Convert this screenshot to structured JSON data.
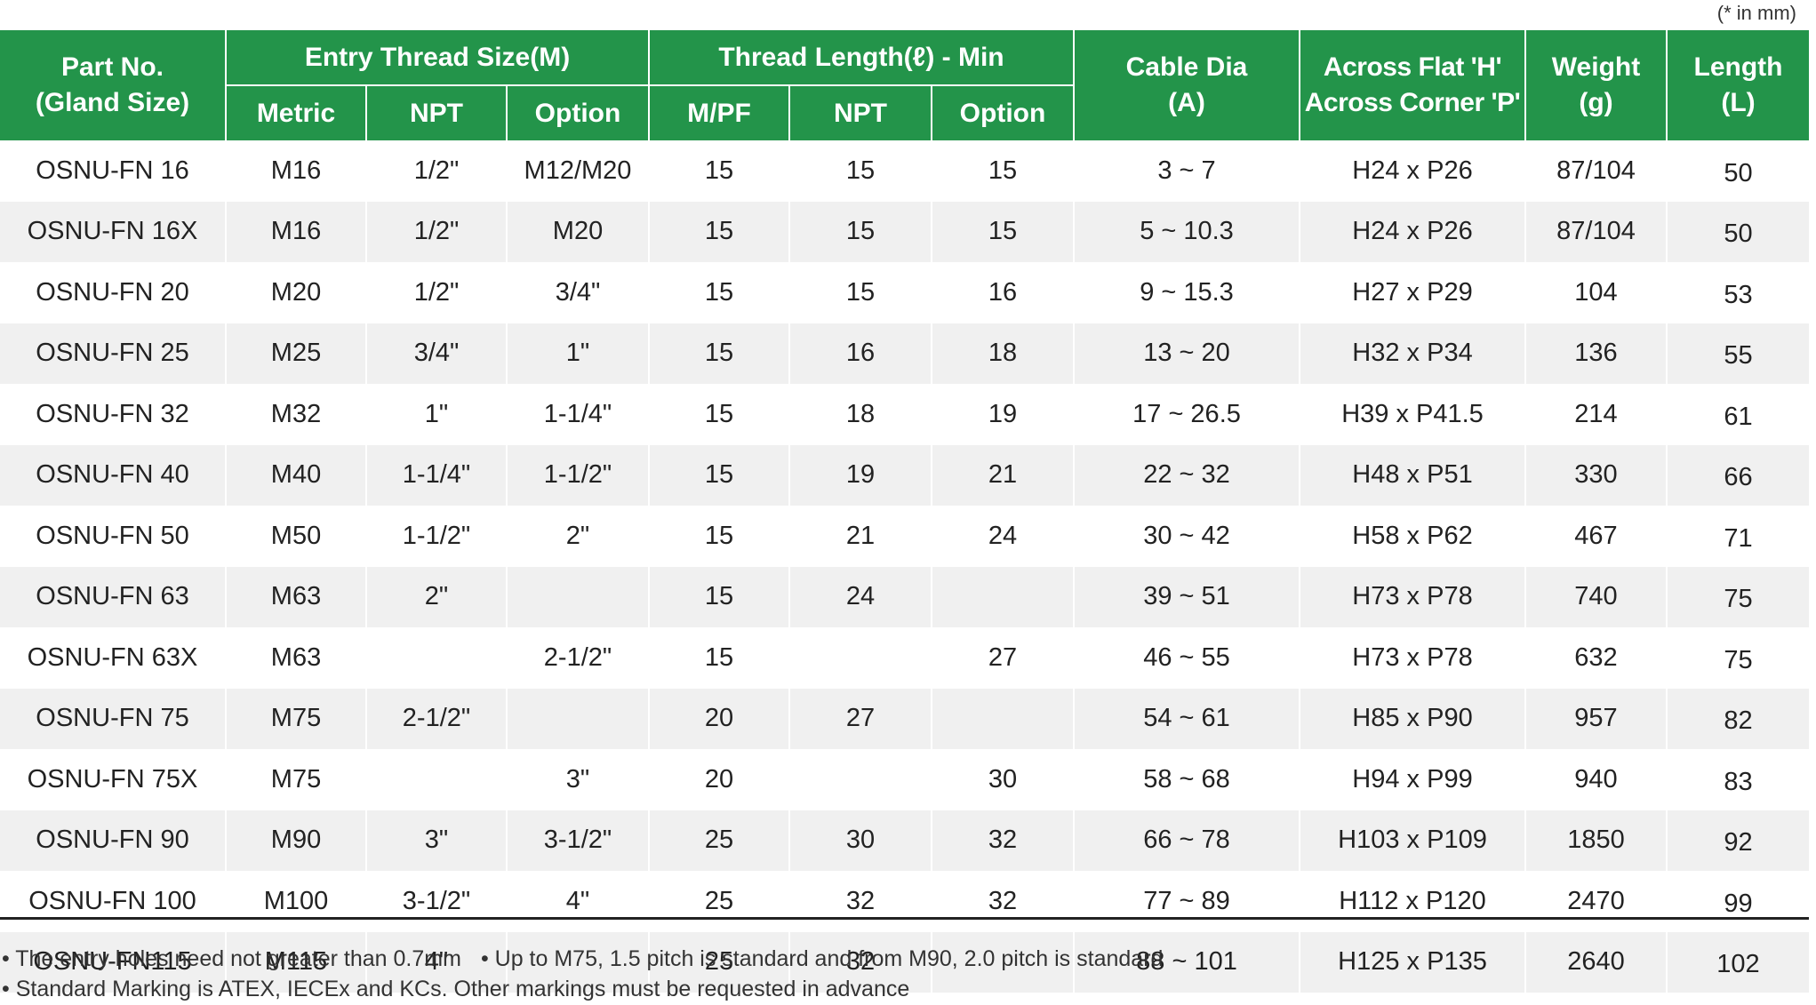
{
  "unit_note": "(* in mm)",
  "header": {
    "part_no": "Part No.",
    "gland_size": "(Gland Size)",
    "entry_thread": "Entry Thread Size(M)",
    "thread_length": "Thread Length(ℓ) - Min",
    "cable_dia": "Cable Dia",
    "cable_dia_unit": "(A)",
    "across_flat": "Across Flat 'H'",
    "across_corner": "Across Corner 'P'",
    "weight": "Weight",
    "weight_unit": "(g)",
    "length": "Length",
    "length_unit": "(L)",
    "sub": {
      "metric": "Metric",
      "npt": "NPT",
      "option": "Option",
      "mpf": "M/PF",
      "tl_npt": "NPT",
      "tl_option": "Option"
    }
  },
  "rows": [
    [
      "OSNU-FN 16",
      "M16",
      "1/2\"",
      "M12/M20",
      "15",
      "15",
      "15",
      "3 ~ 7",
      "H24 x P26",
      "87/104",
      "50"
    ],
    [
      "OSNU-FN 16X",
      "M16",
      "1/2\"",
      "M20",
      "15",
      "15",
      "15",
      "5 ~ 10.3",
      "H24 x P26",
      "87/104",
      "50"
    ],
    [
      "OSNU-FN 20",
      "M20",
      "1/2\"",
      "3/4\"",
      "15",
      "15",
      "16",
      "9 ~ 15.3",
      "H27 x P29",
      "104",
      "53"
    ],
    [
      "OSNU-FN 25",
      "M25",
      "3/4\"",
      "1\"",
      "15",
      "16",
      "18",
      "13 ~ 20",
      "H32 x P34",
      "136",
      "55"
    ],
    [
      "OSNU-FN 32",
      "M32",
      "1\"",
      "1-1/4\"",
      "15",
      "18",
      "19",
      "17 ~ 26.5",
      "H39 x P41.5",
      "214",
      "61"
    ],
    [
      "OSNU-FN 40",
      "M40",
      "1-1/4\"",
      "1-1/2\"",
      "15",
      "19",
      "21",
      "22 ~ 32",
      "H48 x P51",
      "330",
      "66"
    ],
    [
      "OSNU-FN 50",
      "M50",
      "1-1/2\"",
      "2\"",
      "15",
      "21",
      "24",
      "30 ~ 42",
      "H58 x P62",
      "467",
      "71"
    ],
    [
      "OSNU-FN 63",
      "M63",
      "2\"",
      "",
      "15",
      "24",
      "",
      "39 ~ 51",
      "H73 x P78",
      "740",
      "75"
    ],
    [
      "OSNU-FN 63X",
      "M63",
      "",
      "2-1/2\"",
      "15",
      "",
      "27",
      "46 ~ 55",
      "H73 x P78",
      "632",
      "75"
    ],
    [
      "OSNU-FN 75",
      "M75",
      "2-1/2\"",
      "",
      "20",
      "27",
      "",
      "54 ~ 61",
      "H85 x P90",
      "957",
      "82"
    ],
    [
      "OSNU-FN 75X",
      "M75",
      "",
      "3\"",
      "20",
      "",
      "30",
      "58 ~ 68",
      "H94 x P99",
      "940",
      "83"
    ],
    [
      "OSNU-FN 90",
      "M90",
      "3\"",
      "3-1/2\"",
      "25",
      "30",
      "32",
      "66 ~ 78",
      "H103 x P109",
      "1850",
      "92"
    ],
    [
      "OSNU-FN 100",
      "M100",
      "3-1/2\"",
      "4\"",
      "25",
      "32",
      "32",
      "77 ~ 89",
      "H112 x P120",
      "2470",
      "99"
    ],
    [
      "OSNU-FN115",
      "M115",
      "4\"",
      "",
      "25",
      "32",
      "",
      "88 ~ 101",
      "H125 x P135",
      "2640",
      "102"
    ]
  ],
  "notes": {
    "note1": "• The entry holes need not greater than 0.7mm",
    "note2": "• Up to M75, 1.5 pitch is standard and from M90, 2.0 pitch is standard",
    "note3": "• Standard Marking is ATEX, IECEx and KCs. Other markings must be requested in advance"
  }
}
